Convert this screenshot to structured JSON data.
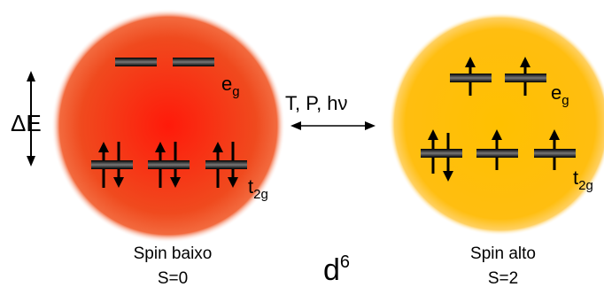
{
  "delta": "ΔE",
  "stimuli": "T, P, hν",
  "config": {
    "symbol": "d",
    "superscript": "6"
  },
  "left": {
    "label": "Spin baixo",
    "spin": "S=0",
    "upper_level": {
      "symbol": "e",
      "subscript": "g"
    },
    "lower_level": {
      "symbol": "t",
      "subscript": "2g"
    }
  },
  "right": {
    "label": "Spin alto",
    "spin": "S=2",
    "upper_level": {
      "symbol": "e",
      "subscript": "g"
    },
    "lower_level": {
      "symbol": "t",
      "subscript": "2g"
    }
  }
}
